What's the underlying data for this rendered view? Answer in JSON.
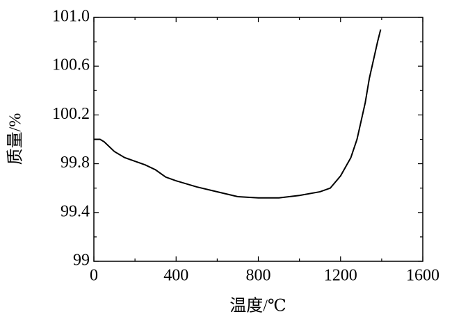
{
  "chart_data": {
    "type": "line",
    "x_label": "温度/℃",
    "y_label": "质量/%",
    "x": [
      0,
      30,
      50,
      100,
      150,
      200,
      250,
      300,
      350,
      400,
      500,
      600,
      700,
      800,
      900,
      1000,
      1100,
      1150,
      1200,
      1250,
      1280,
      1300,
      1320,
      1340,
      1360,
      1380,
      1395
    ],
    "series": [
      {
        "color": "#000000",
        "values": [
          100.0,
          100.0,
          99.98,
          99.9,
          99.85,
          99.82,
          99.79,
          99.75,
          99.69,
          99.66,
          99.61,
          99.57,
          99.53,
          99.52,
          99.52,
          99.54,
          99.57,
          99.6,
          99.7,
          99.85,
          100.0,
          100.15,
          100.3,
          100.5,
          100.65,
          100.8,
          100.9
        ]
      }
    ],
    "xlim": [
      0,
      1600
    ],
    "xticks": [
      0,
      400,
      800,
      1200,
      1600
    ],
    "ylim": [
      99,
      101
    ],
    "yticks": [
      99,
      99.4,
      99.8,
      100.2,
      100.6,
      {
        "value": 101,
        "label": "101.0"
      }
    ],
    "grid": false
  }
}
